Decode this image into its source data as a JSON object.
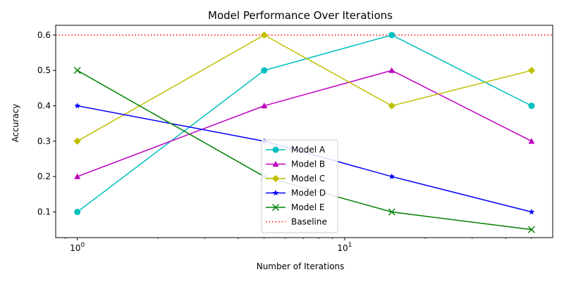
{
  "chart_data": {
    "type": "line",
    "title": "Model Performance Over Iterations",
    "xlabel": "Number of Iterations",
    "ylabel": "Accuracy",
    "xscale": "log",
    "x": [
      1,
      5,
      15,
      50
    ],
    "xlim": [
      0.83,
      60
    ],
    "ylim": [
      0.0275,
      0.6275
    ],
    "x_major_ticks": [
      1,
      10
    ],
    "x_major_tick_labels": [
      "10^0",
      "10^1"
    ],
    "y_ticks": [
      0.1,
      0.2,
      0.3,
      0.4,
      0.5,
      0.6
    ],
    "y_tick_labels": [
      "0.1",
      "0.2",
      "0.3",
      "0.4",
      "0.5",
      "0.6"
    ],
    "grid": false,
    "legend_position": "bottom-center",
    "series": [
      {
        "name": "Model A",
        "values": [
          0.1,
          0.5,
          0.6,
          0.4
        ],
        "color": "#00bfbf",
        "marker": "circle"
      },
      {
        "name": "Model B",
        "values": [
          0.2,
          0.4,
          0.5,
          0.3
        ],
        "color": "#bf00bf",
        "marker": "triangle"
      },
      {
        "name": "Model C",
        "values": [
          0.3,
          0.6,
          0.4,
          0.5
        ],
        "color": "#bfbf00",
        "marker": "diamond"
      },
      {
        "name": "Model D",
        "values": [
          0.4,
          0.3,
          0.2,
          0.1
        ],
        "color": "#0000ff",
        "marker": "star"
      },
      {
        "name": "Model E",
        "values": [
          0.5,
          0.2,
          0.1,
          0.05
        ],
        "color": "#008000",
        "marker": "x"
      }
    ],
    "reference_lines": [
      {
        "name": "Baseline",
        "y": 0.6,
        "color": "#ff0000",
        "style": "dotted"
      }
    ]
  }
}
